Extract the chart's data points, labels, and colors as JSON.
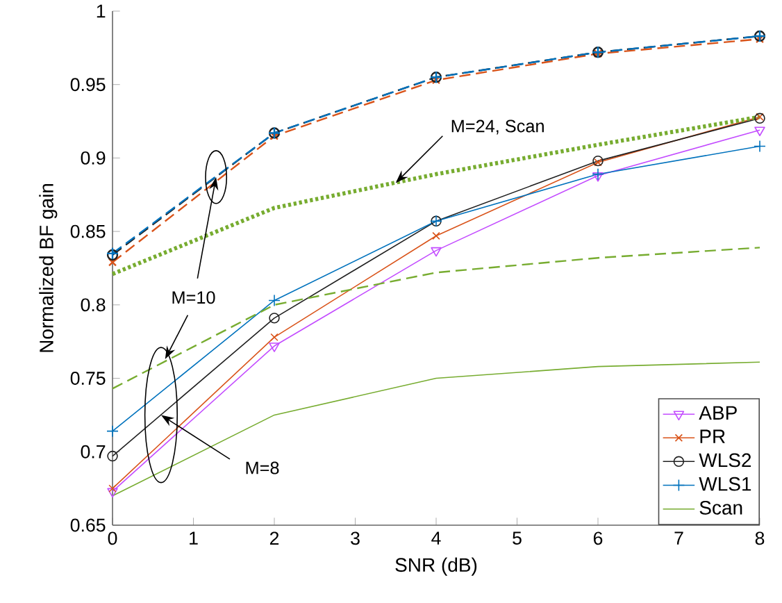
{
  "chart_data": {
    "type": "line",
    "xlabel": "SNR (dB)",
    "ylabel": "Normalized BF gain",
    "x": [
      0,
      2,
      4,
      6,
      8
    ],
    "xlim": [
      0,
      8
    ],
    "ylim": [
      0.65,
      1
    ],
    "xticks": [
      0,
      1,
      2,
      3,
      4,
      5,
      6,
      7,
      8
    ],
    "yticks": [
      0.65,
      0.7,
      0.75,
      0.8,
      0.85,
      0.9,
      0.95,
      1
    ],
    "grid": false,
    "legend": "bottom right",
    "series": [
      {
        "name": "ABP",
        "color": "#c34cff",
        "marker": "triangle",
        "line_style": "solid",
        "values": [
          0.673,
          0.772,
          0.837,
          0.888,
          0.919
        ]
      },
      {
        "name": "PR",
        "color": "#d95319",
        "marker": "cross",
        "line_style": "solid",
        "values": [
          0.675,
          0.778,
          0.847,
          0.897,
          0.928
        ]
      },
      {
        "name": "WLS2",
        "color": "#202020",
        "marker": "circle",
        "line_style": "solid",
        "values": [
          0.697,
          0.791,
          0.857,
          0.898,
          0.927
        ]
      },
      {
        "name": "WLS1",
        "color": "#0072bd",
        "marker": "plus",
        "line_style": "solid",
        "values": [
          0.714,
          0.803,
          0.857,
          0.889,
          0.908
        ]
      },
      {
        "name": "Scan",
        "color": "#77ac30",
        "marker": "none",
        "line_style": "solid",
        "values": [
          0.67,
          0.725,
          0.75,
          0.758,
          0.761
        ]
      },
      {
        "color": "#d95319",
        "marker": "cross",
        "line_style": "dashed",
        "values": [
          0.829,
          0.915,
          0.953,
          0.971,
          0.981
        ]
      },
      {
        "color": "#202020",
        "marker": "circle",
        "line_style": "dashed",
        "values": [
          0.834,
          0.917,
          0.955,
          0.972,
          0.983
        ]
      },
      {
        "color": "#0072bd",
        "marker": "plus",
        "line_style": "dashed",
        "values": [
          0.835,
          0.917,
          0.955,
          0.972,
          0.983
        ]
      },
      {
        "color": "#77ac30",
        "marker": "none",
        "line_style": "dashed",
        "values": [
          0.743,
          0.8,
          0.822,
          0.832,
          0.839
        ]
      },
      {
        "color": "#77ac30",
        "marker": "none",
        "line_style": "dotted",
        "values": [
          0.821,
          0.866,
          0.889,
          0.909,
          0.928
        ]
      }
    ],
    "annotations": [
      {
        "text": "M=10",
        "x": 1.28,
        "y": 0.887
      },
      {
        "text": "M=24, Scan",
        "x": 3.5,
        "y": 0.883
      },
      {
        "text": "M=8",
        "x": 0.6,
        "y": 0.725
      }
    ]
  }
}
